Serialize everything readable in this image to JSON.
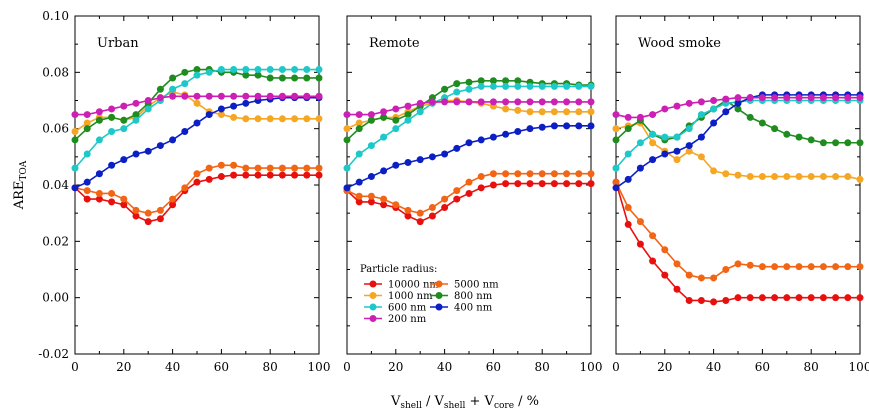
{
  "y_label_main": "ARE",
  "y_label_sub": "TOA",
  "x_label": {
    "v1": "V",
    "s1": "shell",
    "mid": " / V",
    "s2": "shell",
    "plus": " + V",
    "s3": "core",
    "unit": "   /   %"
  },
  "legend": {
    "title": "Particle radius:",
    "entries": [
      {
        "name": "10000 nm",
        "color": "#e8100f"
      },
      {
        "name": "5000 nm",
        "color": "#f26514"
      },
      {
        "name": "1000 nm",
        "color": "#f5a623"
      },
      {
        "name": "800 nm",
        "color": "#1f8c1f"
      },
      {
        "name": "600 nm",
        "color": "#1ec8c8"
      },
      {
        "name": "400 nm",
        "color": "#0b1fc4"
      },
      {
        "name": "200 nm",
        "color": "#cc1fb4"
      }
    ]
  },
  "chart_data": {
    "type": "line",
    "x": [
      0,
      5,
      10,
      15,
      20,
      25,
      30,
      35,
      40,
      45,
      50,
      55,
      60,
      65,
      70,
      75,
      80,
      85,
      90,
      95,
      100
    ],
    "xlim": [
      0,
      100
    ],
    "ylim": [
      -0.02,
      0.1
    ],
    "x_ticks": [
      "0",
      "20",
      "40",
      "60",
      "80",
      "100"
    ],
    "y_ticks": [
      "-0.02",
      "0.00",
      "0.02",
      "0.04",
      "0.06",
      "0.08",
      "0.10"
    ],
    "panels": [
      {
        "title": "Urban",
        "series": [
          {
            "name": "10000 nm",
            "values": [
              0.039,
              0.035,
              0.035,
              0.034,
              0.033,
              0.029,
              0.027,
              0.028,
              0.033,
              0.038,
              0.041,
              0.042,
              0.043,
              0.0435,
              0.0435,
              0.0435,
              0.0435,
              0.0435,
              0.0435,
              0.0435,
              0.0435
            ]
          },
          {
            "name": "5000 nm",
            "values": [
              0.039,
              0.038,
              0.037,
              0.037,
              0.035,
              0.031,
              0.03,
              0.031,
              0.035,
              0.039,
              0.044,
              0.046,
              0.047,
              0.047,
              0.046,
              0.046,
              0.046,
              0.046,
              0.046,
              0.046,
              0.046
            ]
          },
          {
            "name": "1000 nm",
            "values": [
              0.059,
              0.062,
              0.064,
              0.064,
              0.063,
              0.064,
              0.068,
              0.071,
              0.073,
              0.072,
              0.069,
              0.066,
              0.065,
              0.064,
              0.0635,
              0.0635,
              0.0635,
              0.0635,
              0.0635,
              0.0635,
              0.0635
            ]
          },
          {
            "name": "800 nm",
            "values": [
              0.056,
              0.06,
              0.063,
              0.064,
              0.063,
              0.065,
              0.069,
              0.074,
              0.078,
              0.08,
              0.081,
              0.081,
              0.08,
              0.08,
              0.079,
              0.079,
              0.078,
              0.078,
              0.078,
              0.078,
              0.078
            ]
          },
          {
            "name": "600 nm",
            "values": [
              0.046,
              0.051,
              0.056,
              0.059,
              0.06,
              0.063,
              0.067,
              0.07,
              0.074,
              0.076,
              0.079,
              0.08,
              0.081,
              0.081,
              0.081,
              0.081,
              0.081,
              0.081,
              0.081,
              0.081,
              0.081
            ]
          },
          {
            "name": "400 nm",
            "values": [
              0.039,
              0.041,
              0.044,
              0.047,
              0.049,
              0.051,
              0.052,
              0.054,
              0.056,
              0.059,
              0.062,
              0.065,
              0.067,
              0.068,
              0.069,
              0.07,
              0.0705,
              0.071,
              0.071,
              0.071,
              0.071
            ]
          },
          {
            "name": "200 nm",
            "values": [
              0.065,
              0.065,
              0.066,
              0.067,
              0.068,
              0.069,
              0.07,
              0.071,
              0.0715,
              0.0715,
              0.0715,
              0.0715,
              0.0715,
              0.0715,
              0.0715,
              0.0715,
              0.0715,
              0.0715,
              0.0715,
              0.0715,
              0.0715
            ]
          }
        ]
      },
      {
        "title": "Remote",
        "series": [
          {
            "name": "10000 nm",
            "values": [
              0.038,
              0.034,
              0.034,
              0.033,
              0.032,
              0.029,
              0.027,
              0.029,
              0.032,
              0.035,
              0.037,
              0.039,
              0.04,
              0.0405,
              0.0405,
              0.0405,
              0.0405,
              0.0405,
              0.0405,
              0.0405,
              0.0405
            ]
          },
          {
            "name": "5000 nm",
            "values": [
              0.038,
              0.036,
              0.036,
              0.035,
              0.033,
              0.031,
              0.03,
              0.032,
              0.035,
              0.038,
              0.041,
              0.043,
              0.044,
              0.044,
              0.044,
              0.044,
              0.044,
              0.044,
              0.044,
              0.044,
              0.044
            ]
          },
          {
            "name": "1000 nm",
            "values": [
              0.06,
              0.062,
              0.063,
              0.064,
              0.064,
              0.066,
              0.068,
              0.069,
              0.07,
              0.07,
              0.0695,
              0.069,
              0.068,
              0.067,
              0.0665,
              0.066,
              0.066,
              0.066,
              0.066,
              0.066,
              0.066
            ]
          },
          {
            "name": "800 nm",
            "values": [
              0.056,
              0.06,
              0.063,
              0.064,
              0.063,
              0.065,
              0.068,
              0.071,
              0.074,
              0.076,
              0.0765,
              0.077,
              0.077,
              0.077,
              0.077,
              0.0765,
              0.076,
              0.076,
              0.076,
              0.0755,
              0.0755
            ]
          },
          {
            "name": "600 nm",
            "values": [
              0.046,
              0.051,
              0.054,
              0.057,
              0.06,
              0.063,
              0.066,
              0.069,
              0.071,
              0.073,
              0.074,
              0.075,
              0.075,
              0.075,
              0.075,
              0.075,
              0.075,
              0.075,
              0.075,
              0.075,
              0.075
            ]
          },
          {
            "name": "400 nm",
            "values": [
              0.039,
              0.041,
              0.043,
              0.045,
              0.047,
              0.048,
              0.049,
              0.05,
              0.051,
              0.053,
              0.055,
              0.056,
              0.057,
              0.058,
              0.059,
              0.06,
              0.0605,
              0.061,
              0.061,
              0.061,
              0.061
            ]
          },
          {
            "name": "200 nm",
            "values": [
              0.065,
              0.065,
              0.065,
              0.066,
              0.067,
              0.068,
              0.069,
              0.0695,
              0.0695,
              0.0695,
              0.0695,
              0.0695,
              0.0695,
              0.0695,
              0.0695,
              0.0695,
              0.0695,
              0.0695,
              0.0695,
              0.0695,
              0.0695
            ]
          }
        ]
      },
      {
        "title": "Wood smoke",
        "series": [
          {
            "name": "10000 nm",
            "values": [
              0.041,
              0.026,
              0.019,
              0.013,
              0.008,
              0.003,
              -0.001,
              -0.001,
              -0.0015,
              -0.001,
              0.0,
              0.0,
              0.0,
              0.0,
              0.0,
              0.0,
              0.0,
              0.0,
              0.0,
              0.0,
              0.0
            ]
          },
          {
            "name": "5000 nm",
            "values": [
              0.041,
              0.032,
              0.027,
              0.022,
              0.017,
              0.012,
              0.008,
              0.007,
              0.007,
              0.01,
              0.012,
              0.0115,
              0.011,
              0.011,
              0.011,
              0.011,
              0.011,
              0.011,
              0.011,
              0.011,
              0.011
            ]
          },
          {
            "name": "1000 nm",
            "values": [
              0.06,
              0.061,
              0.062,
              0.055,
              0.052,
              0.049,
              0.052,
              0.05,
              0.045,
              0.044,
              0.0435,
              0.043,
              0.043,
              0.043,
              0.043,
              0.043,
              0.043,
              0.043,
              0.043,
              0.043,
              0.042
            ]
          },
          {
            "name": "800 nm",
            "values": [
              0.056,
              0.06,
              0.063,
              0.058,
              0.056,
              0.057,
              0.061,
              0.064,
              0.067,
              0.07,
              0.067,
              0.064,
              0.062,
              0.06,
              0.058,
              0.057,
              0.056,
              0.055,
              0.055,
              0.055,
              0.055
            ]
          },
          {
            "name": "600 nm",
            "values": [
              0.046,
              0.051,
              0.055,
              0.058,
              0.057,
              0.057,
              0.06,
              0.065,
              0.067,
              0.069,
              0.0695,
              0.07,
              0.07,
              0.07,
              0.07,
              0.07,
              0.07,
              0.07,
              0.07,
              0.07,
              0.07
            ]
          },
          {
            "name": "400 nm",
            "values": [
              0.039,
              0.042,
              0.046,
              0.049,
              0.051,
              0.052,
              0.054,
              0.057,
              0.062,
              0.066,
              0.069,
              0.071,
              0.072,
              0.072,
              0.072,
              0.072,
              0.072,
              0.072,
              0.072,
              0.072,
              0.072
            ]
          },
          {
            "name": "200 nm",
            "values": [
              0.065,
              0.064,
              0.064,
              0.065,
              0.067,
              0.068,
              0.069,
              0.0695,
              0.07,
              0.0705,
              0.071,
              0.071,
              0.071,
              0.071,
              0.071,
              0.071,
              0.071,
              0.071,
              0.071,
              0.071,
              0.071
            ]
          }
        ]
      }
    ]
  }
}
